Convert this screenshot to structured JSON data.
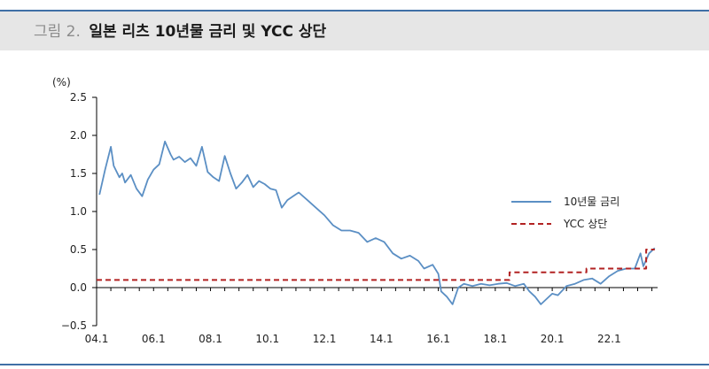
{
  "header": {
    "figure_label": "그림 2.",
    "title": "일본 리츠 10년물 금리 및 YCC 상단"
  },
  "colors": {
    "accent_rule": "#3f6fa6",
    "header_band": "#e6e6e6",
    "series_yield": "#5b8fc4",
    "series_ycc": "#b22222"
  },
  "chart_data": {
    "type": "line",
    "title": "",
    "xlabel": "",
    "ylabel": "(%)",
    "ylim": [
      -0.5,
      2.5
    ],
    "yticks": [
      -0.5,
      0.0,
      0.5,
      1.0,
      1.5,
      2.0,
      2.5
    ],
    "ytick_labels": [
      "−0.5",
      "0.0",
      "0.5",
      "1.0",
      "1.5",
      "2.0",
      "2.5"
    ],
    "xlim": [
      2004.0,
      2023.7
    ],
    "xticks": [
      2004,
      2006,
      2008,
      2010,
      2012,
      2014,
      2016,
      2018,
      2020,
      2022
    ],
    "xtick_labels": [
      "04.1",
      "06.1",
      "08.1",
      "10.1",
      "12.1",
      "14.1",
      "16.1",
      "18.1",
      "20.1",
      "22.1"
    ],
    "grid": false,
    "legend": "right",
    "series": [
      {
        "name": "10년물 금리",
        "style": "solid",
        "color": "#5b8fc4",
        "x": [
          2004.1,
          2004.3,
          2004.5,
          2004.6,
          2004.8,
          2004.9,
          2005.0,
          2005.2,
          2005.4,
          2005.6,
          2005.8,
          2006.0,
          2006.2,
          2006.4,
          2006.6,
          2006.7,
          2006.9,
          2007.1,
          2007.3,
          2007.5,
          2007.7,
          2007.9,
          2008.1,
          2008.3,
          2008.5,
          2008.7,
          2008.9,
          2009.1,
          2009.3,
          2009.5,
          2009.7,
          2009.9,
          2010.1,
          2010.3,
          2010.5,
          2010.7,
          2010.9,
          2011.1,
          2011.4,
          2011.7,
          2012.0,
          2012.3,
          2012.6,
          2012.9,
          2013.2,
          2013.5,
          2013.8,
          2014.1,
          2014.4,
          2014.7,
          2015.0,
          2015.3,
          2015.5,
          2015.8,
          2016.0,
          2016.1,
          2016.3,
          2016.5,
          2016.7,
          2016.9,
          2017.2,
          2017.5,
          2017.8,
          2018.1,
          2018.4,
          2018.7,
          2019.0,
          2019.2,
          2019.4,
          2019.6,
          2019.8,
          2020.0,
          2020.2,
          2020.5,
          2020.8,
          2021.1,
          2021.4,
          2021.7,
          2022.0,
          2022.3,
          2022.6,
          2022.9,
          2023.1,
          2023.2,
          2023.4,
          2023.6
        ],
        "values": [
          1.22,
          1.55,
          1.85,
          1.6,
          1.45,
          1.5,
          1.38,
          1.48,
          1.3,
          1.2,
          1.42,
          1.55,
          1.62,
          1.92,
          1.75,
          1.68,
          1.72,
          1.65,
          1.7,
          1.6,
          1.85,
          1.52,
          1.45,
          1.4,
          1.73,
          1.5,
          1.3,
          1.38,
          1.48,
          1.32,
          1.4,
          1.36,
          1.3,
          1.28,
          1.05,
          1.15,
          1.2,
          1.25,
          1.15,
          1.05,
          0.95,
          0.82,
          0.75,
          0.75,
          0.72,
          0.6,
          0.65,
          0.6,
          0.45,
          0.38,
          0.42,
          0.35,
          0.25,
          0.3,
          0.18,
          -0.05,
          -0.12,
          -0.22,
          0.0,
          0.05,
          0.02,
          0.05,
          0.03,
          0.05,
          0.06,
          0.02,
          0.05,
          -0.05,
          -0.12,
          -0.22,
          -0.15,
          -0.08,
          -0.1,
          0.02,
          0.05,
          0.1,
          0.12,
          0.05,
          0.15,
          0.22,
          0.25,
          0.25,
          0.45,
          0.28,
          0.45,
          0.52
        ]
      },
      {
        "name": "YCC 상단",
        "style": "dashed",
        "color": "#b22222",
        "x": [
          2004.0,
          2018.5,
          2018.5,
          2021.2,
          2021.2,
          2023.3,
          2023.3,
          2023.6
        ],
        "values": [
          0.1,
          0.1,
          0.2,
          0.2,
          0.25,
          0.25,
          0.5,
          0.5
        ]
      }
    ]
  }
}
